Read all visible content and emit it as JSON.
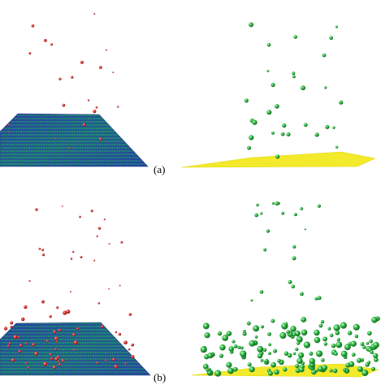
{
  "panels": [
    {
      "label": "(a)",
      "left_view": {
        "surface": "graphene-lattice",
        "adsorbate_color": "#d62f2f",
        "atom_density": "sparse"
      },
      "right_view": {
        "surface": "yellow-sheet",
        "adsorbate_color": "#1f9a2e",
        "atom_density": "sparse"
      }
    },
    {
      "label": "(b)",
      "left_view": {
        "surface": "graphene-lattice",
        "adsorbate_color": "#d62f2f",
        "atom_density": "dense"
      },
      "right_view": {
        "surface": "yellow-sheet",
        "adsorbate_color": "#1f9a2e",
        "atom_density": "dense"
      }
    }
  ],
  "colors": {
    "lattice_blue": "#2a3f9a",
    "lattice_green": "#1fa35a",
    "sheet_yellow": "#f2ea2a",
    "red_atom": "#d62f2f",
    "green_atom": "#1f9a2e"
  }
}
